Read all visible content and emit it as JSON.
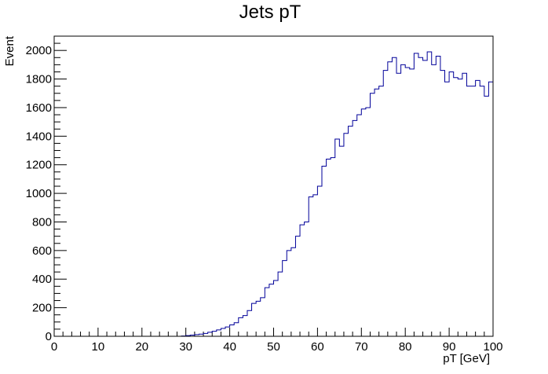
{
  "chart_data": {
    "type": "bar",
    "title": "Jets pT",
    "xlabel": "pT [GeV]",
    "ylabel": "Event",
    "xlim": [
      0,
      100
    ],
    "ylim": [
      0,
      2100
    ],
    "bin_width": 1,
    "x_ticks": [
      0,
      10,
      20,
      30,
      40,
      50,
      60,
      70,
      80,
      90,
      100
    ],
    "y_ticks": [
      0,
      200,
      400,
      600,
      800,
      1000,
      1200,
      1400,
      1600,
      1800,
      2000
    ],
    "grid": false,
    "legend": false,
    "colors": {
      "line": "#000099",
      "frame": "#000000",
      "background": "#ffffff"
    },
    "x": [
      0,
      1,
      2,
      3,
      4,
      5,
      6,
      7,
      8,
      9,
      10,
      11,
      12,
      13,
      14,
      15,
      16,
      17,
      18,
      19,
      20,
      21,
      22,
      23,
      24,
      25,
      26,
      27,
      28,
      29,
      30,
      31,
      32,
      33,
      34,
      35,
      36,
      37,
      38,
      39,
      40,
      41,
      42,
      43,
      44,
      45,
      46,
      47,
      48,
      49,
      50,
      51,
      52,
      53,
      54,
      55,
      56,
      57,
      58,
      59,
      60,
      61,
      62,
      63,
      64,
      65,
      66,
      67,
      68,
      69,
      70,
      71,
      72,
      73,
      74,
      75,
      76,
      77,
      78,
      79,
      80,
      81,
      82,
      83,
      84,
      85,
      86,
      87,
      88,
      89,
      90,
      91,
      92,
      93,
      94,
      95,
      96,
      97,
      98,
      99
    ],
    "values": [
      0,
      0,
      0,
      0,
      0,
      0,
      0,
      0,
      0,
      0,
      0,
      0,
      0,
      0,
      0,
      0,
      0,
      0,
      0,
      0,
      0,
      0,
      0,
      0,
      0,
      0,
      0,
      0,
      0,
      2,
      5,
      8,
      12,
      15,
      20,
      28,
      35,
      45,
      55,
      65,
      80,
      95,
      130,
      145,
      180,
      230,
      245,
      270,
      340,
      365,
      390,
      450,
      530,
      600,
      620,
      700,
      780,
      800,
      975,
      990,
      1050,
      1190,
      1240,
      1250,
      1380,
      1330,
      1420,
      1470,
      1510,
      1550,
      1590,
      1600,
      1700,
      1730,
      1750,
      1860,
      1920,
      1950,
      1840,
      1900,
      1880,
      1870,
      1980,
      1950,
      1930,
      1990,
      1900,
      1960,
      1860,
      1780,
      1850,
      1810,
      1800,
      1840,
      1750,
      1750,
      1790,
      1750,
      1680,
      1780
    ]
  }
}
